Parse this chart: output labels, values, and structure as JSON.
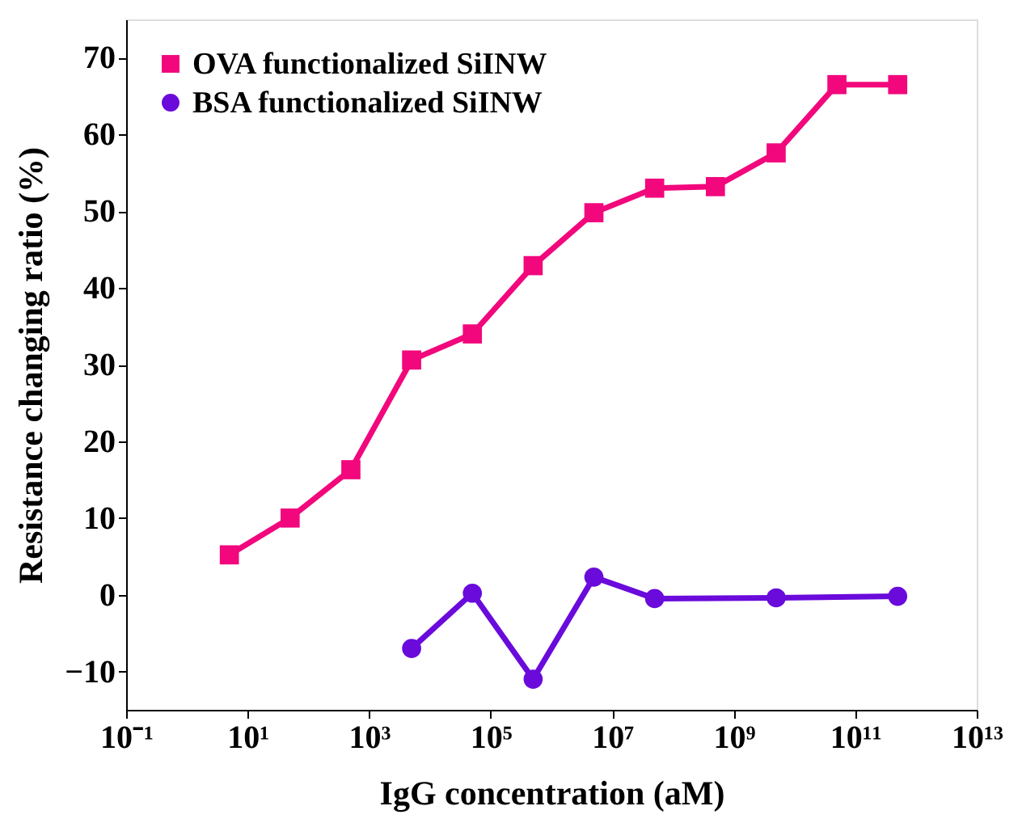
{
  "chart_data": {
    "type": "line",
    "xlabel": "IgG concentration (aM)",
    "ylabel": "Resistance changing ratio (%)",
    "log": "x",
    "grid": false,
    "legend": "top left",
    "xlim": [
      0.1,
      10000000000000.0
    ],
    "xticks": [
      {
        "value": 0.1,
        "label": "10⁻¹"
      },
      {
        "value": 10,
        "label": "10¹"
      },
      {
        "value": 1000,
        "label": "10³"
      },
      {
        "value": 100000,
        "label": "10⁵"
      },
      {
        "value": 10000000,
        "label": "10⁷"
      },
      {
        "value": 1000000000,
        "label": "10⁹"
      },
      {
        "value": 100000000000,
        "label": "10¹¹"
      },
      {
        "value": 10000000000000,
        "label": "10¹³"
      }
    ],
    "ylim": [
      -15,
      75
    ],
    "yticks": [
      -10,
      0,
      10,
      20,
      30,
      40,
      50,
      60,
      70
    ],
    "series": [
      {
        "name": "OVA functionalized SiINW",
        "color": "#f2077c",
        "marker": "square",
        "x": [
          5,
          50,
          500,
          5000,
          50000,
          500000,
          5000000,
          50000000,
          500000000,
          5000000000,
          50000000000,
          500000000000
        ],
        "values": [
          5.2,
          10,
          16.3,
          30.6,
          34,
          42.9,
          49.8,
          53,
          53.2,
          57.6,
          66.5,
          66.5
        ]
      },
      {
        "name": "BSA functionalized SiINW",
        "color": "#6a0adb",
        "marker": "circle",
        "x": [
          5000,
          50000,
          500000,
          5000000,
          50000000,
          5000000000,
          500000000000
        ],
        "values": [
          -7,
          0.2,
          -11,
          2.3,
          -0.5,
          -0.4,
          -0.2
        ]
      }
    ]
  }
}
